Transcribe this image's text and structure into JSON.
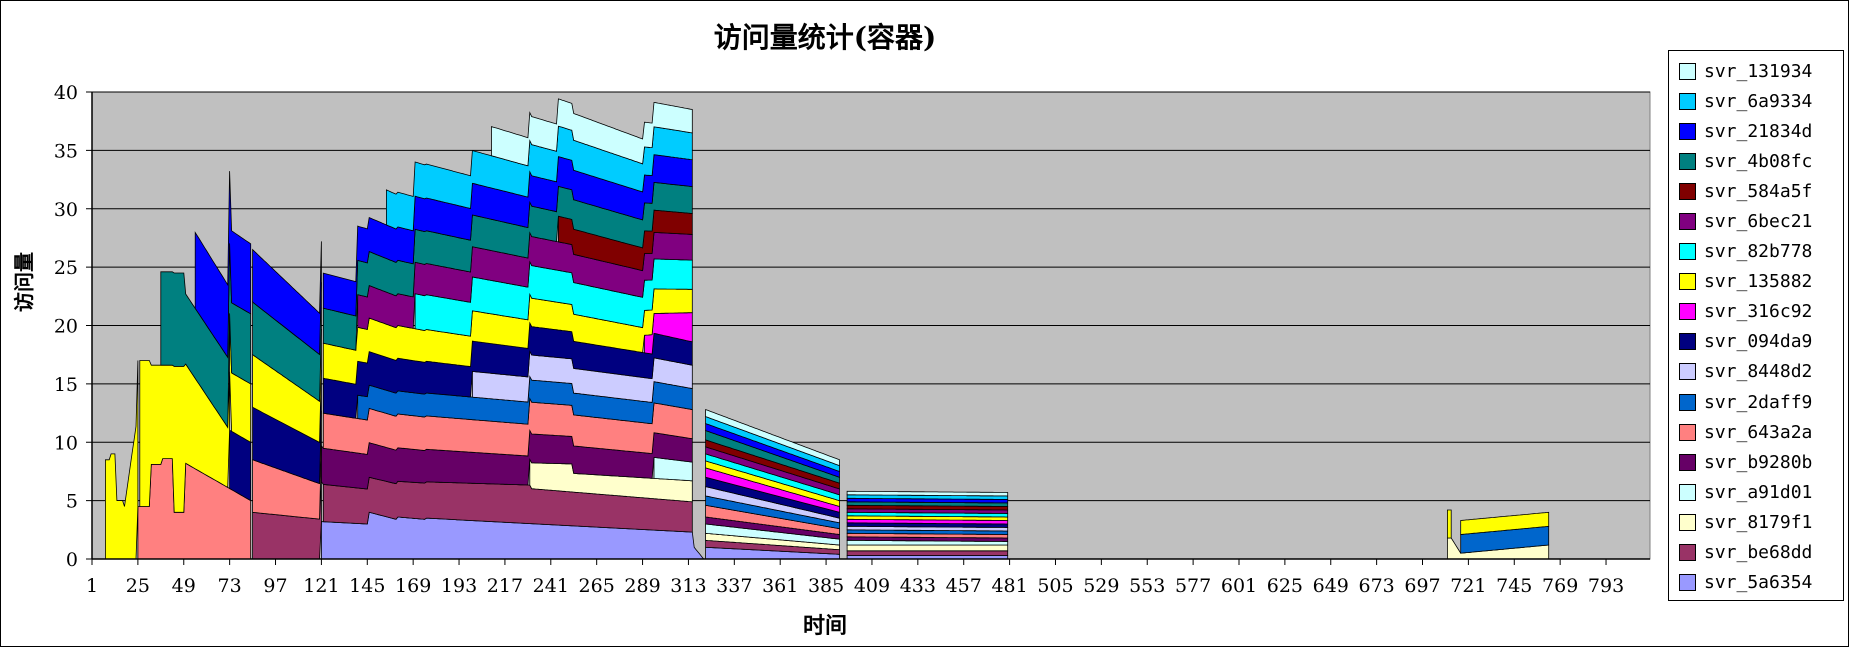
{
  "chart_data": {
    "type": "area",
    "stacked": true,
    "title": "访问量统计(容器)",
    "xlabel": "时间",
    "ylabel": "访问量",
    "ylim": [
      0,
      40
    ],
    "xlim": [
      1,
      816
    ],
    "yticks": [
      "0",
      "5",
      "10",
      "15",
      "20",
      "25",
      "30",
      "35",
      "40"
    ],
    "xticks": [
      "1",
      "25",
      "49",
      "73",
      "97",
      "121",
      "145",
      "169",
      "193",
      "217",
      "241",
      "265",
      "289",
      "313",
      "337",
      "361",
      "385",
      "409",
      "433",
      "457",
      "481",
      "505",
      "529",
      "553",
      "577",
      "601",
      "625",
      "649",
      "673",
      "697",
      "721",
      "745",
      "769",
      "793"
    ],
    "grid": true,
    "plot_background": "#C0C0C0",
    "legend_position": "right",
    "series": [
      {
        "name": "svr_5a6354",
        "color": "#9999FF",
        "segments": [
          {
            "x": [
              121,
              145,
              146,
              160,
              161,
              175,
              176,
              315,
              316,
              321
            ],
            "y": [
              3.2,
              3,
              4,
              3.4,
              3.6,
              3.4,
              3.5,
              2.3,
              1,
              0
            ]
          },
          {
            "x": [
              322,
              392
            ],
            "y": [
              1,
              0.4
            ]
          },
          {
            "x": [
              396,
              480
            ],
            "y": [
              0.3,
              0.3
            ]
          }
        ]
      },
      {
        "name": "svr_be68dd",
        "color": "#993366",
        "segments": [
          {
            "x": [
              85,
              121
            ],
            "y": [
              4,
              3.4
            ]
          },
          {
            "x": [
              122,
              145,
              146,
              230,
              231,
              315
            ],
            "y": [
              3.2,
              3,
              3,
              3.3,
              3,
              2.6
            ]
          },
          {
            "x": [
              322,
              392
            ],
            "y": [
              0.6,
              0.4
            ]
          },
          {
            "x": [
              396,
              480
            ],
            "y": [
              0.4,
              0.4
            ]
          }
        ]
      },
      {
        "name": "svr_8179f1",
        "color": "#FFFFCC",
        "segments": [
          {
            "x": [
              230,
              252,
              253,
              315
            ],
            "y": [
              2.2,
              2.4,
              1.6,
              1.8
            ]
          },
          {
            "x": [
              322,
              392
            ],
            "y": [
              0.6,
              0.4
            ]
          },
          {
            "x": [
              396,
              480
            ],
            "y": [
              0.5,
              0.5
            ]
          },
          {
            "x": [
              710,
              712,
              717,
              763
            ],
            "y": [
              1.8,
              1.8,
              0.5,
              1.2
            ]
          }
        ]
      },
      {
        "name": "svr_a91d01",
        "color": "#CCFFFF",
        "segments": [
          {
            "x": [
              295,
              315
            ],
            "y": [
              1.8,
              1.6
            ]
          },
          {
            "x": [
              322,
              392
            ],
            "y": [
              0.8,
              0.5
            ]
          },
          {
            "x": [
              396,
              480
            ],
            "y": [
              0.4,
              0.3
            ]
          }
        ]
      },
      {
        "name": "svr_b9280b",
        "color": "#660066",
        "segments": [
          {
            "x": [
              121,
              315
            ],
            "y": [
              3.1,
              2
            ]
          },
          {
            "x": [
              322,
              392
            ],
            "y": [
              0.6,
              0.4
            ]
          },
          {
            "x": [
              396,
              480
            ],
            "y": [
              0.3,
              0.3
            ]
          }
        ]
      },
      {
        "name": "svr_643a2a",
        "color": "#FF8080",
        "segments": [
          {
            "x": [
              25,
              31,
              32,
              37,
              38,
              43,
              44,
              49,
              50,
              84
            ],
            "y": [
              4.5,
              4.5,
              8.1,
              8.1,
              8.6,
              8.6,
              4,
              4,
              8.2,
              5
            ]
          },
          {
            "x": [
              85,
              121
            ],
            "y": [
              4.5,
              3
            ]
          },
          {
            "x": [
              122,
              315
            ],
            "y": [
              3,
              2.5
            ]
          },
          {
            "x": [
              322,
              392
            ],
            "y": [
              1,
              0.5
            ]
          },
          {
            "x": [
              396,
              480
            ],
            "y": [
              0.3,
              0.3
            ]
          }
        ]
      },
      {
        "name": "svr_2daff9",
        "color": "#0066CC",
        "segments": [
          {
            "x": [
              140,
              315
            ],
            "y": [
              2,
              1.8
            ]
          },
          {
            "x": [
              322,
              392
            ],
            "y": [
              0.8,
              0.5
            ]
          },
          {
            "x": [
              396,
              480
            ],
            "y": [
              0.3,
              0.3
            ]
          },
          {
            "x": [
              717,
              763
            ],
            "y": [
              1.6,
              1.6
            ]
          }
        ]
      },
      {
        "name": "svr_8448d2",
        "color": "#CCCCFF",
        "segments": [
          {
            "x": [
              200,
              315
            ],
            "y": [
              2.2,
              2
            ]
          },
          {
            "x": [
              322,
              392
            ],
            "y": [
              0.8,
              0.4
            ]
          },
          {
            "x": [
              396,
              480
            ],
            "y": [
              0.3,
              0.3
            ]
          }
        ]
      },
      {
        "name": "svr_094da9",
        "color": "#000080",
        "segments": [
          {
            "x": [
              73,
              84
            ],
            "y": [
              5,
              5
            ]
          },
          {
            "x": [
              85,
              121
            ],
            "y": [
              4.5,
              3.5
            ]
          },
          {
            "x": [
              122,
              315
            ],
            "y": [
              3,
              2
            ]
          },
          {
            "x": [
              322,
              392
            ],
            "y": [
              0.8,
              0.5
            ]
          },
          {
            "x": [
              396,
              480
            ],
            "y": [
              0.3,
              0.3
            ]
          }
        ]
      },
      {
        "name": "svr_316c92",
        "color": "#FF00FF",
        "segments": [
          {
            "x": [
              290,
              315
            ],
            "y": [
              1.5,
              2.5
            ]
          },
          {
            "x": [
              322,
              392
            ],
            "y": [
              0.8,
              0.5
            ]
          },
          {
            "x": [
              396,
              480
            ],
            "y": [
              0.3,
              0.3
            ]
          }
        ]
      },
      {
        "name": "svr_135882",
        "color": "#FFFF00",
        "segments": [
          {
            "x": [
              8,
              10,
              11,
              13,
              14,
              17,
              18,
              25
            ],
            "y": [
              8.5,
              8.5,
              9,
              9,
              5,
              5,
              4.5,
              12.5
            ]
          },
          {
            "x": [
              26,
              31,
              32,
              37,
              38,
              43,
              44,
              49,
              50,
              73
            ],
            "y": [
              12.5,
              12.5,
              8.5,
              8.5,
              8,
              8,
              12.5,
              12.5,
              8.5,
              5
            ]
          },
          {
            "x": [
              73,
              84
            ],
            "y": [
              5,
              5
            ]
          },
          {
            "x": [
              85,
              121
            ],
            "y": [
              4.5,
              3.5
            ]
          },
          {
            "x": [
              122,
              315
            ],
            "y": [
              3,
              2
            ]
          },
          {
            "x": [
              322,
              392
            ],
            "y": [
              0.6,
              0.5
            ]
          },
          {
            "x": [
              396,
              480
            ],
            "y": [
              0.3,
              0.3
            ]
          },
          {
            "x": [
              710,
              712
            ],
            "y": [
              2.4,
              2.4
            ]
          },
          {
            "x": [
              717,
              763
            ],
            "y": [
              1.2,
              1.2
            ]
          }
        ]
      },
      {
        "name": "svr_82b778",
        "color": "#00FFFF",
        "segments": [
          {
            "x": [
              170,
              315
            ],
            "y": [
              3,
              2.5
            ]
          },
          {
            "x": [
              322,
              392
            ],
            "y": [
              0.6,
              0.5
            ]
          },
          {
            "x": [
              396,
              480
            ],
            "y": [
              0.3,
              0.3
            ]
          }
        ]
      },
      {
        "name": "svr_6bec21",
        "color": "#800080",
        "segments": [
          {
            "x": [
              140,
              315
            ],
            "y": [
              2.8,
              2.2
            ]
          },
          {
            "x": [
              322,
              392
            ],
            "y": [
              0.6,
              0.5
            ]
          },
          {
            "x": [
              396,
              480
            ],
            "y": [
              0.3,
              0.3
            ]
          }
        ]
      },
      {
        "name": "svr_584a5f",
        "color": "#800000",
        "segments": [
          {
            "x": [
              245,
              315
            ],
            "y": [
              2.2,
              1.8
            ]
          },
          {
            "x": [
              322,
              392
            ],
            "y": [
              0.6,
              0.5
            ]
          },
          {
            "x": [
              396,
              480
            ],
            "y": [
              0.3,
              0.3
            ]
          }
        ]
      },
      {
        "name": "svr_4b08fc",
        "color": "#008080",
        "segments": [
          {
            "x": [
              37,
              49,
              50,
              84
            ],
            "y": [
              8,
              8,
              6,
              6
            ]
          },
          {
            "x": [
              85,
              121
            ],
            "y": [
              4.5,
              4
            ]
          },
          {
            "x": [
              122,
              315
            ],
            "y": [
              3,
              2.3
            ]
          },
          {
            "x": [
              322,
              392
            ],
            "y": [
              0.8,
              0.5
            ]
          },
          {
            "x": [
              396,
              480
            ],
            "y": [
              0.3,
              0.3
            ]
          }
        ]
      },
      {
        "name": "svr_21834d",
        "color": "#0000FF",
        "segments": [
          {
            "x": [
              55,
              84
            ],
            "y": [
              6.5,
              6
            ]
          },
          {
            "x": [
              85,
              121
            ],
            "y": [
              4.5,
              3.5
            ]
          },
          {
            "x": [
              122,
              315
            ],
            "y": [
              3,
              2.3
            ]
          },
          {
            "x": [
              322,
              392
            ],
            "y": [
              0.6,
              0.5
            ]
          },
          {
            "x": [
              396,
              480
            ],
            "y": [
              0.3,
              0.3
            ]
          }
        ]
      },
      {
        "name": "svr_6a9334",
        "color": "#00CCFF",
        "segments": [
          {
            "x": [
              155,
              315
            ],
            "y": [
              3,
              2.3
            ]
          },
          {
            "x": [
              322,
              392
            ],
            "y": [
              0.6,
              0.5
            ]
          },
          {
            "x": [
              396,
              480
            ],
            "y": [
              0.3,
              0.3
            ]
          }
        ]
      },
      {
        "name": "svr_131934",
        "color": "#CCFFFF",
        "segments": [
          {
            "x": [
              210,
              315
            ],
            "y": [
              2.5,
              2
            ]
          },
          {
            "x": [
              322,
              392
            ],
            "y": [
              0.6,
              0.5
            ]
          },
          {
            "x": [
              396,
              480
            ],
            "y": [
              0.3,
              0.3
            ]
          }
        ]
      }
    ]
  }
}
